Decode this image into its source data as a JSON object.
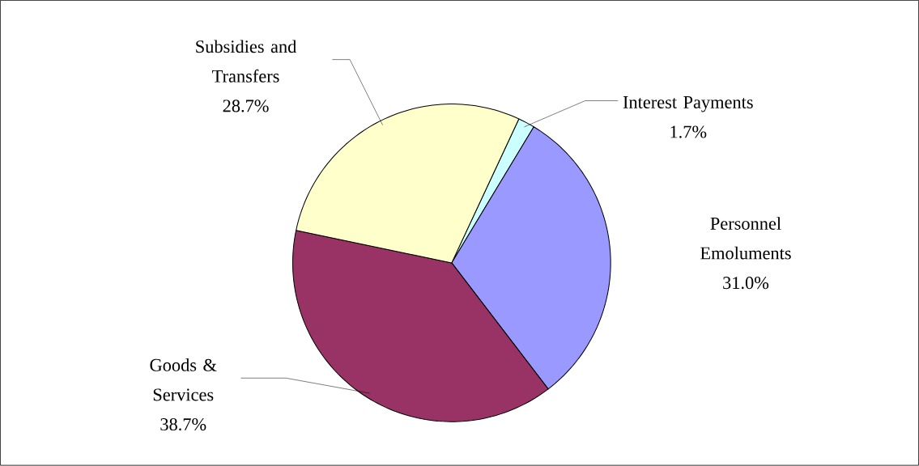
{
  "chart_data": {
    "type": "pie",
    "categories": [
      "Interest Payments",
      "Personnel Emoluments",
      "Goods & Services",
      "Subsidies and Transfers"
    ],
    "values": [
      1.7,
      31.0,
      38.7,
      28.7
    ],
    "colors": [
      "#ccffff",
      "#9999ff",
      "#993366",
      "#ffffcc"
    ],
    "value_labels": [
      "1.7%",
      "31.0%",
      "38.7%",
      "28.7%"
    ]
  }
}
